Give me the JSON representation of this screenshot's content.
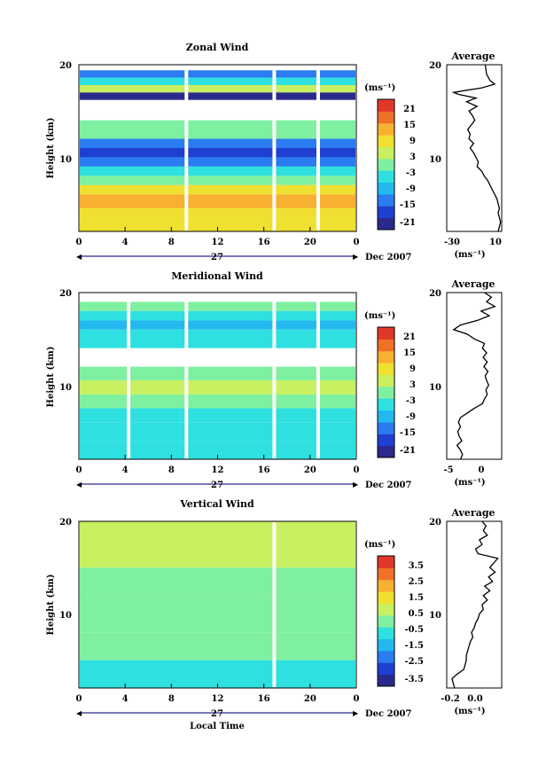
{
  "panels": [
    {
      "id": "zonal",
      "title": "Zonal Wind",
      "ylabel": "Height (km)",
      "yticks": [
        "20",
        "10"
      ],
      "xticks": [
        "0",
        "4",
        "8",
        "12",
        "16",
        "20",
        "0"
      ],
      "date_day": "27",
      "date_label": "Dec 2007",
      "colorbar": {
        "unit": "(ms⁻¹)",
        "ticks": [
          "21",
          "15",
          "9",
          "3",
          "-3",
          "-9",
          "-15",
          "-21"
        ]
      },
      "avg": {
        "title": "Average",
        "xticks": [
          "-30",
          "10"
        ],
        "unit": "(ms⁻¹)",
        "yticks": [
          "20",
          "10"
        ]
      }
    },
    {
      "id": "meridional",
      "title": "Meridional Wind",
      "ylabel": "Height (km)",
      "yticks": [
        "20",
        "10"
      ],
      "xticks": [
        "0",
        "4",
        "8",
        "12",
        "16",
        "20",
        "0"
      ],
      "date_day": "27",
      "date_label": "Dec 2007",
      "colorbar": {
        "unit": "(ms⁻¹)",
        "ticks": [
          "21",
          "15",
          "9",
          "3",
          "-3",
          "-9",
          "-15",
          "-21"
        ]
      },
      "avg": {
        "title": "Average",
        "xticks": [
          "-5",
          "0"
        ],
        "unit": "(ms⁻¹)",
        "yticks": [
          "20",
          "10"
        ]
      }
    },
    {
      "id": "vertical",
      "title": "Vertical Wind",
      "ylabel": "Height (km)",
      "yticks": [
        "20",
        "10"
      ],
      "xticks": [
        "0",
        "4",
        "8",
        "12",
        "16",
        "20",
        "0"
      ],
      "date_day": "27",
      "date_label": "Dec 2007",
      "xlabel": "Local Time",
      "colorbar": {
        "unit": "(ms⁻¹)",
        "ticks": [
          "3.5",
          "2.5",
          "1.5",
          "0.5",
          "-0.5",
          "-1.5",
          "-2.5",
          "-3.5"
        ]
      },
      "avg": {
        "title": "Average",
        "xticks": [
          "-0.2",
          "0.0"
        ],
        "unit": "(ms⁻¹)",
        "yticks": [
          "20",
          "10"
        ]
      }
    }
  ],
  "chart_data": [
    {
      "type": "heatmap",
      "title": "Zonal Wind",
      "x_label": "Local Time",
      "ylabel": "Height (km)",
      "xlim": [
        0,
        24
      ],
      "ylim": [
        2,
        20
      ],
      "zlim": [
        -24,
        24
      ],
      "color_unit": "(ms⁻¹)",
      "colormap": [
        "#2a2a8c",
        "#1f3fd0",
        "#2a7cf0",
        "#22b8f0",
        "#2fe0e0",
        "#7ef0a0",
        "#c8f060",
        "#f0e030",
        "#f8b030",
        "#f07028",
        "#e03828"
      ],
      "rows": [
        {
          "h_from": 18.6,
          "h_to": 19.4,
          "value": -15
        },
        {
          "h_from": 17.8,
          "h_to": 18.6,
          "value": -6
        },
        {
          "h_from": 17.0,
          "h_to": 17.8,
          "value": 4
        },
        {
          "h_from": 16.2,
          "h_to": 17.0,
          "value": -20
        },
        {
          "h_from": 12.0,
          "h_to": 14.0,
          "value": -1
        },
        {
          "h_from": 11.0,
          "h_to": 12.0,
          "value": -13
        },
        {
          "h_from": 10.0,
          "h_to": 11.0,
          "value": -17
        },
        {
          "h_from": 9.0,
          "h_to": 10.0,
          "value": -12
        },
        {
          "h_from": 8.0,
          "h_to": 9.0,
          "value": -6
        },
        {
          "h_from": 7.0,
          "h_to": 8.0,
          "value": 0
        },
        {
          "h_from": 6.0,
          "h_to": 7.0,
          "value": 7
        },
        {
          "h_from": 4.5,
          "h_to": 6.0,
          "value": 11
        },
        {
          "h_from": 2.0,
          "h_to": 4.5,
          "value": 10
        }
      ],
      "gaps_x": [
        9.3,
        16.9,
        20.7
      ],
      "profile": {
        "xlim": [
          -35,
          12
        ],
        "h": [
          20,
          19,
          18.3,
          17.9,
          17.5,
          17.2,
          17.0,
          16.8,
          16.4,
          16.0,
          15.5,
          15.0,
          14.5,
          14.0,
          13.5,
          13.0,
          12.5,
          12.0,
          11.5,
          11.0,
          10.5,
          10.0,
          9.5,
          9.0,
          8.5,
          8.0,
          7.5,
          7.0,
          6.5,
          6.0,
          5.5,
          5.0,
          4.5,
          4.0,
          3.5,
          3.0,
          2.5,
          2.0
        ],
        "v": [
          -2,
          -1,
          2,
          6,
          -5,
          -20,
          -29,
          -25,
          -10,
          -18,
          -9,
          -16,
          -13,
          -11,
          -14,
          -17,
          -15,
          -16,
          -12,
          -15,
          -12,
          -10,
          -8,
          -9,
          -5,
          -3,
          0,
          2,
          4,
          6,
          8,
          9,
          10,
          9,
          10,
          11,
          10,
          9
        ]
      }
    },
    {
      "type": "heatmap",
      "title": "Meridional Wind",
      "x_label": "Local Time",
      "ylabel": "Height (km)",
      "xlim": [
        0,
        24
      ],
      "ylim": [
        2,
        20
      ],
      "zlim": [
        -24,
        24
      ],
      "color_unit": "(ms⁻¹)",
      "colormap": [
        "#2a2a8c",
        "#1f3fd0",
        "#2a7cf0",
        "#22b8f0",
        "#2fe0e0",
        "#7ef0a0",
        "#c8f060",
        "#f0e030",
        "#f8b030",
        "#f07028",
        "#e03828"
      ],
      "rows": [
        {
          "h_from": 18.0,
          "h_to": 19.0,
          "value": 2
        },
        {
          "h_from": 17.0,
          "h_to": 18.0,
          "value": -5
        },
        {
          "h_from": 16.0,
          "h_to": 17.0,
          "value": -10
        },
        {
          "h_from": 14.0,
          "h_to": 16.0,
          "value": -3
        },
        {
          "h_from": 10.5,
          "h_to": 12.0,
          "value": 1
        },
        {
          "h_from": 9.0,
          "h_to": 10.5,
          "value": 3
        },
        {
          "h_from": 7.5,
          "h_to": 9.0,
          "value": 0
        },
        {
          "h_from": 6.0,
          "h_to": 7.5,
          "value": -3
        },
        {
          "h_from": 4.0,
          "h_to": 6.0,
          "value": -6
        },
        {
          "h_from": 2.0,
          "h_to": 4.0,
          "value": -5
        }
      ],
      "gaps_x": [
        4.3,
        9.3,
        16.9,
        20.7
      ],
      "profile": {
        "xlim": [
          -5,
          3
        ],
        "h": [
          20,
          19.5,
          19.0,
          18.5,
          18.0,
          17.5,
          17.0,
          16.5,
          16.0,
          15.5,
          15.0,
          14.5,
          14.0,
          13.5,
          13.0,
          12.5,
          12.0,
          11.5,
          11.0,
          10.5,
          10.0,
          9.5,
          9.0,
          8.5,
          8.0,
          7.5,
          7.0,
          6.5,
          6.0,
          5.5,
          5.0,
          4.5,
          4.0,
          3.5,
          3.0,
          2.5,
          2.0
        ],
        "v": [
          0.5,
          1.5,
          0.8,
          2.0,
          0.0,
          1.2,
          -0.5,
          -3.0,
          -4.0,
          -2.0,
          -1.0,
          0.5,
          0.2,
          0.8,
          0.3,
          0.9,
          0.4,
          1.0,
          0.6,
          0.8,
          1.1,
          0.7,
          0.9,
          0.5,
          0.2,
          -1.0,
          -2.0,
          -3.0,
          -3.3,
          -3.0,
          -3.4,
          -3.2,
          -2.8,
          -3.5,
          -3.0,
          -2.7,
          -3.0
        ]
      }
    },
    {
      "type": "heatmap",
      "title": "Vertical Wind",
      "x_label": "Local Time",
      "ylabel": "Height (km)",
      "xlim": [
        0,
        24
      ],
      "ylim": [
        2,
        20
      ],
      "zlim": [
        -4,
        4
      ],
      "color_unit": "(ms⁻¹)",
      "colormap": [
        "#2a2a8c",
        "#1f3fd0",
        "#2a7cf0",
        "#22b8f0",
        "#2fe0e0",
        "#7ef0a0",
        "#c8f060",
        "#f0e030",
        "#f8b030",
        "#f07028",
        "#e03828"
      ],
      "rows": [
        {
          "h_from": 15.0,
          "h_to": 20.0,
          "value": 0.4
        },
        {
          "h_from": 12.0,
          "h_to": 15.0,
          "value": 0.2
        },
        {
          "h_from": 8.0,
          "h_to": 12.0,
          "value": 0.1
        },
        {
          "h_from": 5.0,
          "h_to": 8.0,
          "value": -0.1
        },
        {
          "h_from": 2.0,
          "h_to": 5.0,
          "value": -0.4
        }
      ],
      "gaps_x": [
        16.9
      ],
      "profile": {
        "xlim": [
          -0.25,
          0.17
        ],
        "h": [
          20,
          19.5,
          19.0,
          18.5,
          18.0,
          17.5,
          17.0,
          16.5,
          16.0,
          15.5,
          15.0,
          14.5,
          14.0,
          13.5,
          13.0,
          12.5,
          12.0,
          11.5,
          11.0,
          10.5,
          10.0,
          9.5,
          9.0,
          8.5,
          8.0,
          7.5,
          7.0,
          6.5,
          6.0,
          5.5,
          5.0,
          4.5,
          4.0,
          3.5,
          3.0,
          2.5,
          2.0
        ],
        "v": [
          0.02,
          0.05,
          0.03,
          0.06,
          0.0,
          0.02,
          -0.03,
          -0.01,
          0.14,
          0.11,
          0.08,
          0.12,
          0.07,
          0.1,
          0.04,
          0.08,
          0.03,
          0.06,
          0.02,
          0.03,
          0.0,
          -0.01,
          -0.03,
          -0.04,
          -0.06,
          -0.05,
          -0.07,
          -0.08,
          -0.09,
          -0.1,
          -0.1,
          -0.11,
          -0.12,
          -0.17,
          -0.21,
          -0.2,
          -0.19
        ]
      }
    }
  ]
}
